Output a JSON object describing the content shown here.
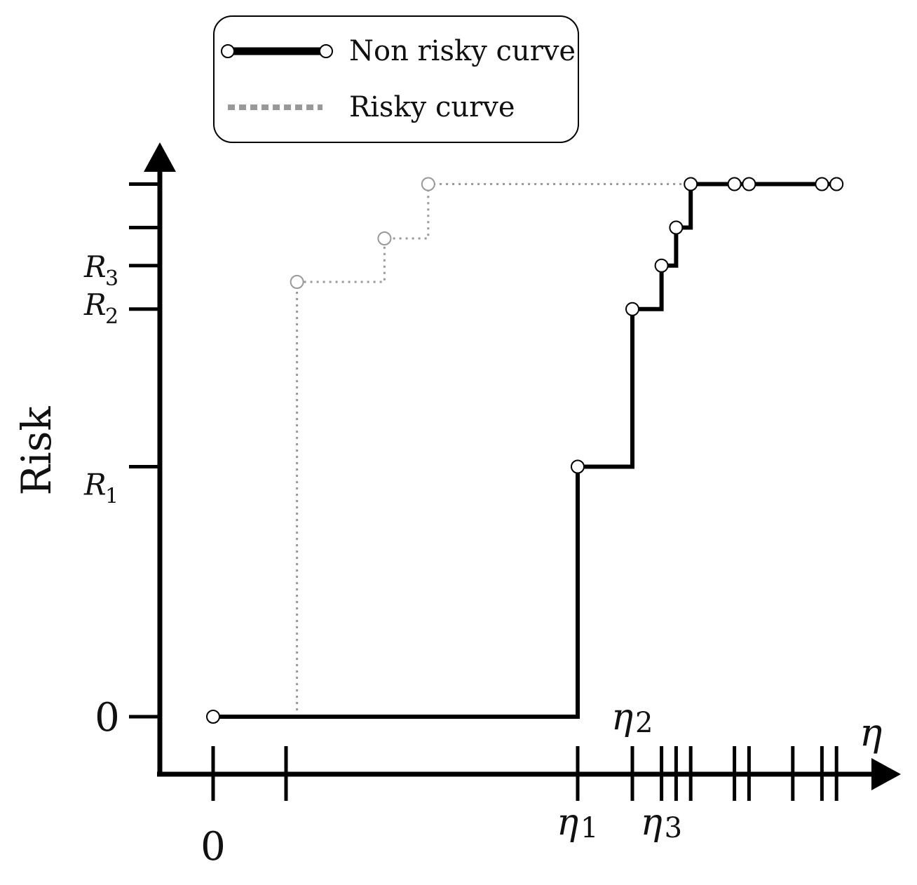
{
  "chart_data": {
    "type": "line",
    "ylabel": "Risk",
    "xlabel": "η",
    "x_ticks": [
      0,
      0.2,
      1.0,
      1.15,
      1.23,
      1.27,
      1.31,
      1.43,
      1.47,
      1.59,
      1.67,
      1.71
    ],
    "x_tick_labels": [
      {
        "x": 0,
        "text": "0",
        "sub": ""
      },
      {
        "x": 1.0,
        "text": "η",
        "sub": "1"
      },
      {
        "x": 1.15,
        "text": "η",
        "sub": "2"
      },
      {
        "x": 1.23,
        "text": "η",
        "sub": "3"
      }
    ],
    "y_ticks": [
      0,
      0.46,
      0.75,
      0.83,
      0.9,
      0.98
    ],
    "y_tick_labels": [
      {
        "y": 0,
        "text": "0",
        "sub": ""
      },
      {
        "y": 0.46,
        "text": "R",
        "sub": "1"
      },
      {
        "y": 0.75,
        "text": "R",
        "sub": "2"
      },
      {
        "y": 0.83,
        "text": "R",
        "sub": "3"
      }
    ],
    "series": [
      {
        "name": "Non risky curve",
        "color": "#000000",
        "style": "solid",
        "x": [
          0,
          1.0,
          1.0,
          1.15,
          1.15,
          1.23,
          1.23,
          1.27,
          1.27,
          1.31,
          1.31,
          1.71
        ],
        "y": [
          0,
          0,
          0.46,
          0.46,
          0.75,
          0.75,
          0.83,
          0.83,
          0.9,
          0.9,
          0.98,
          0.98
        ],
        "markers_x": [
          0,
          1.0,
          1.15,
          1.23,
          1.27,
          1.31,
          1.43,
          1.47,
          1.67,
          1.71
        ],
        "markers_y": [
          0,
          0.46,
          0.75,
          0.83,
          0.9,
          0.98,
          0.98,
          0.98,
          0.98,
          0.98
        ]
      },
      {
        "name": "Risky curve",
        "color": "#999999",
        "style": "dotted",
        "x": [
          0.23,
          0.23,
          0.47,
          0.47,
          0.59,
          0.59,
          1.31
        ],
        "y": [
          0,
          0.8,
          0.8,
          0.88,
          0.88,
          0.98,
          0.98
        ],
        "markers_x": [
          0.23,
          0.47,
          0.59
        ],
        "markers_y": [
          0.8,
          0.88,
          0.98
        ]
      }
    ],
    "legend_position": "top-left",
    "grid": false
  }
}
